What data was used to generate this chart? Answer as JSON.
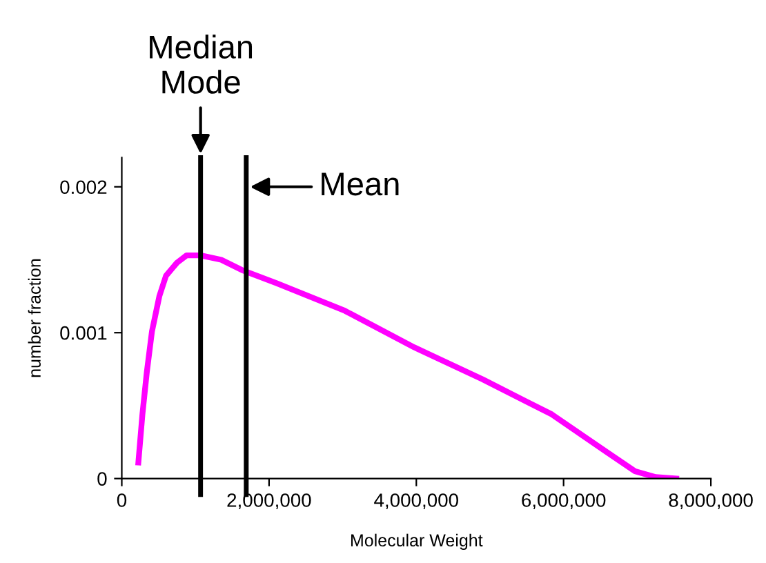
{
  "chart_data": {
    "type": "line",
    "xlabel": "Molecular Weight",
    "ylabel": "number fraction",
    "x": [
      225000,
      280000,
      340000,
      410000,
      510000,
      600000,
      750000,
      880000,
      1070000,
      1350000,
      1630000,
      2100000,
      3030000,
      3970000,
      4900000,
      5840000,
      6590000,
      6970000,
      7250000,
      7530000
    ],
    "series": [
      {
        "color": "#ff00ff",
        "values": [
          0.00011,
          0.00044,
          0.00073,
          0.00101,
          0.00125,
          0.00139,
          0.00148,
          0.00153,
          0.00153,
          0.0015,
          0.00143,
          0.00134,
          0.00115,
          0.0009,
          0.00068,
          0.00044,
          0.00018,
          5e-05,
          1e-05,
          0
        ]
      }
    ],
    "xlim": [
      0,
      8000000
    ],
    "ylim": [
      0,
      0.0022
    ],
    "xticks": [
      0,
      {
        "value": 2000000,
        "label": "2,000,000"
      },
      {
        "value": 4000000,
        "label": "4,000,000"
      },
      {
        "value": 6000000,
        "label": "6,000,000"
      },
      {
        "value": 8000000,
        "label": "8,000,000"
      }
    ],
    "yticks": [
      0,
      0.001,
      0.002
    ],
    "ref_lines": [
      {
        "axis": "x",
        "value": 1070000,
        "color": "#000000"
      },
      {
        "axis": "x",
        "value": 1690000,
        "color": "#000000"
      }
    ],
    "annotations": [
      {
        "text": "Median\nMode",
        "x": 1070000,
        "y": 0.0022
      },
      {
        "text": "Mean",
        "x": 1690000,
        "y": 0.002
      }
    ],
    "grid": false,
    "legend": false,
    "marker": "none",
    "line_style": "solid"
  }
}
